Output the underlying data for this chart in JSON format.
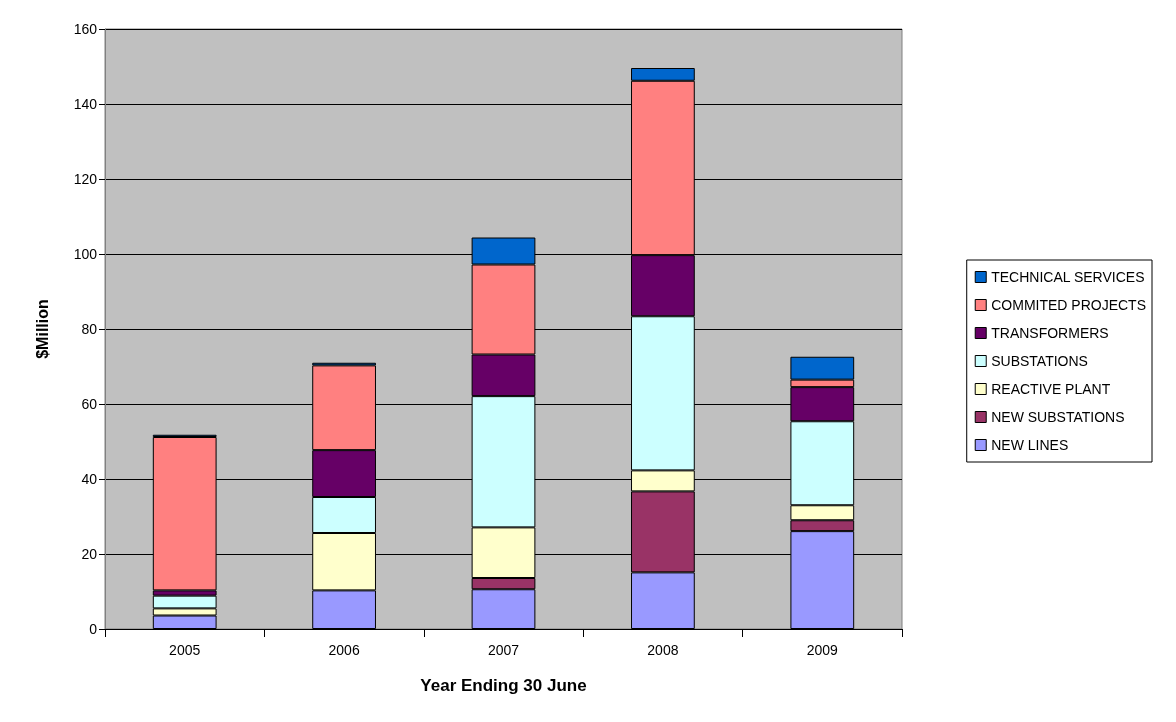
{
  "chart_data": {
    "type": "bar",
    "stacked": true,
    "xlabel": "Year Ending 30 June",
    "ylabel": "$Million",
    "categories": [
      "2005",
      "2006",
      "2007",
      "2008",
      "2009"
    ],
    "series": [
      {
        "name": "NEW LINES",
        "color": "#9999ff",
        "values": [
          3.6,
          10.3,
          10.6,
          15.1,
          26.1
        ]
      },
      {
        "name": "NEW SUBSTATIONS",
        "color": "#993366",
        "values": [
          null,
          null,
          3.0,
          21.6,
          2.9
        ]
      },
      {
        "name": "REACTIVE PLANT",
        "color": "#ffffcc",
        "values": [
          1.9,
          15.3,
          13.5,
          5.6,
          4.0
        ]
      },
      {
        "name": "SUBSTATIONS",
        "color": "#ccffff",
        "values": [
          3.4,
          9.6,
          35.0,
          41.1,
          22.4
        ]
      },
      {
        "name": "TRANSFORMERS",
        "color": "#660066",
        "values": [
          1.4,
          12.5,
          11.1,
          16.3,
          9.1
        ]
      },
      {
        "name": "COMMITED PROJECTS",
        "color": "#ff8080",
        "values": [
          40.9,
          22.6,
          24.0,
          46.5,
          2.0
        ]
      },
      {
        "name": "TECHNICAL SERVICES",
        "color": "#0066cc",
        "values": [
          0.6,
          0.7,
          7.2,
          3.4,
          6.1
        ]
      }
    ],
    "ylim": [
      0,
      160
    ],
    "yticks": [
      0,
      20,
      40,
      60,
      80,
      100,
      120,
      140,
      160
    ],
    "grid": "y",
    "legend": "right"
  }
}
